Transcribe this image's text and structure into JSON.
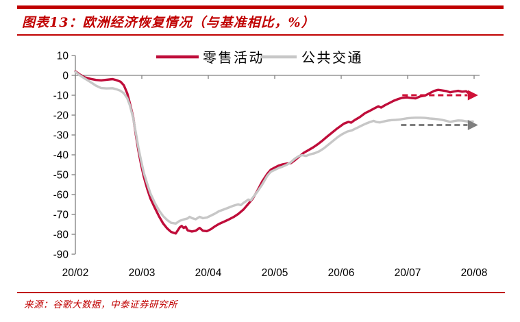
{
  "header": {
    "title": "图表13：欧洲经济恢复情况（与基准相比，%）"
  },
  "footer": {
    "source": "来源：谷歌大数据，中泰证券研究所"
  },
  "colors": {
    "accent_red": "#c00000",
    "series_red": "#bf0d3a",
    "series_gray": "#c7c7c7",
    "dash_red": "#cf1137",
    "dash_gray": "#7f7f7f",
    "axis_gray": "#808080",
    "label_black": "#000000"
  },
  "chart_data": {
    "type": "line",
    "title": "欧洲经济恢复情况（与基准相比，%）",
    "xlabel": "",
    "ylabel": "",
    "grid": false,
    "legend_position": "top-center",
    "x_tick_labels": [
      "20/02",
      "20/03",
      "20/04",
      "20/05",
      "20/06",
      "20/07",
      "20/08"
    ],
    "y_ticks": [
      10,
      0,
      -10,
      -20,
      -30,
      -40,
      -50,
      -60,
      -70,
      -80,
      -90
    ],
    "ylim": [
      -90,
      10
    ],
    "xlim": [
      0,
      6.1
    ],
    "series": [
      {
        "name": "零售活动",
        "color_key": "series_red",
        "points": [
          [
            0.0,
            2
          ],
          [
            0.06,
            0.6
          ],
          [
            0.14,
            -1
          ],
          [
            0.23,
            -1.8
          ],
          [
            0.31,
            -2.3
          ],
          [
            0.39,
            -2.5
          ],
          [
            0.47,
            -2.2
          ],
          [
            0.56,
            -1.9
          ],
          [
            0.62,
            -2.4
          ],
          [
            0.68,
            -3.2
          ],
          [
            0.73,
            -5
          ],
          [
            0.78,
            -9
          ],
          [
            0.82,
            -14
          ],
          [
            0.87,
            -21
          ],
          [
            0.91,
            -30
          ],
          [
            0.95,
            -38
          ],
          [
            0.99,
            -45
          ],
          [
            1.03,
            -51
          ],
          [
            1.08,
            -57
          ],
          [
            1.13,
            -62
          ],
          [
            1.2,
            -67
          ],
          [
            1.26,
            -71
          ],
          [
            1.32,
            -74.5
          ],
          [
            1.38,
            -77
          ],
          [
            1.44,
            -78.8
          ],
          [
            1.51,
            -79.6
          ],
          [
            1.57,
            -76.5
          ],
          [
            1.6,
            -75.8
          ],
          [
            1.63,
            -76.8
          ],
          [
            1.66,
            -76.2
          ],
          [
            1.69,
            -78
          ],
          [
            1.75,
            -78.6
          ],
          [
            1.81,
            -78.2
          ],
          [
            1.87,
            -76.8
          ],
          [
            1.92,
            -78.2
          ],
          [
            1.98,
            -78.4
          ],
          [
            2.04,
            -77.4
          ],
          [
            2.1,
            -76
          ],
          [
            2.16,
            -74.8
          ],
          [
            2.24,
            -73.6
          ],
          [
            2.31,
            -72.5
          ],
          [
            2.38,
            -71.3
          ],
          [
            2.45,
            -69.8
          ],
          [
            2.53,
            -67.5
          ],
          [
            2.6,
            -64.8
          ],
          [
            2.67,
            -62
          ],
          [
            2.74,
            -58
          ],
          [
            2.81,
            -53.5
          ],
          [
            2.89,
            -49.5
          ],
          [
            2.94,
            -47.5
          ],
          [
            3.0,
            -46.4
          ],
          [
            3.06,
            -45.4
          ],
          [
            3.12,
            -44.8
          ],
          [
            3.18,
            -44.4
          ],
          [
            3.24,
            -44.2
          ],
          [
            3.3,
            -42.8
          ],
          [
            3.37,
            -40.8
          ],
          [
            3.44,
            -38.9
          ],
          [
            3.51,
            -37.6
          ],
          [
            3.58,
            -36.2
          ],
          [
            3.65,
            -34.6
          ],
          [
            3.72,
            -32.8
          ],
          [
            3.79,
            -30.8
          ],
          [
            3.86,
            -28.9
          ],
          [
            3.93,
            -27
          ],
          [
            3.98,
            -25.8
          ],
          [
            4.04,
            -24.3
          ],
          [
            4.11,
            -23.4
          ],
          [
            4.15,
            -23.8
          ],
          [
            4.2,
            -22.6
          ],
          [
            4.28,
            -21
          ],
          [
            4.36,
            -19
          ],
          [
            4.44,
            -17.7
          ],
          [
            4.5,
            -16.6
          ],
          [
            4.56,
            -15.6
          ],
          [
            4.6,
            -16.2
          ],
          [
            4.66,
            -15
          ],
          [
            4.72,
            -14
          ],
          [
            4.79,
            -12.8
          ],
          [
            4.86,
            -11.9
          ],
          [
            4.92,
            -11.3
          ],
          [
            4.99,
            -11.1
          ],
          [
            5.06,
            -11.4
          ],
          [
            5.12,
            -11.6
          ],
          [
            5.19,
            -10.6
          ],
          [
            5.26,
            -10.2
          ],
          [
            5.33,
            -9
          ],
          [
            5.4,
            -7.8
          ],
          [
            5.46,
            -7.3
          ],
          [
            5.52,
            -7.6
          ],
          [
            5.58,
            -7.9
          ],
          [
            5.64,
            -8.5
          ],
          [
            5.7,
            -8.1
          ],
          [
            5.76,
            -7.8
          ],
          [
            5.82,
            -8.2
          ],
          [
            5.88,
            -8
          ],
          [
            5.93,
            -9.3
          ]
        ]
      },
      {
        "name": "公共交通",
        "color_key": "series_gray",
        "points": [
          [
            0.0,
            1.8
          ],
          [
            0.06,
            0.2
          ],
          [
            0.14,
            -1.6
          ],
          [
            0.23,
            -3.4
          ],
          [
            0.31,
            -5.2
          ],
          [
            0.39,
            -6.4
          ],
          [
            0.47,
            -6.6
          ],
          [
            0.56,
            -6.5
          ],
          [
            0.62,
            -7
          ],
          [
            0.68,
            -7.8
          ],
          [
            0.73,
            -9
          ],
          [
            0.78,
            -11.5
          ],
          [
            0.82,
            -15
          ],
          [
            0.87,
            -21.5
          ],
          [
            0.91,
            -29
          ],
          [
            0.95,
            -36.5
          ],
          [
            0.99,
            -43
          ],
          [
            1.03,
            -49
          ],
          [
            1.08,
            -54.5
          ],
          [
            1.13,
            -59.5
          ],
          [
            1.2,
            -64.5
          ],
          [
            1.26,
            -68
          ],
          [
            1.32,
            -70.8
          ],
          [
            1.38,
            -72.8
          ],
          [
            1.44,
            -74.2
          ],
          [
            1.51,
            -74.6
          ],
          [
            1.57,
            -73.2
          ],
          [
            1.63,
            -72.5
          ],
          [
            1.69,
            -72
          ],
          [
            1.72,
            -71.2
          ],
          [
            1.75,
            -71.8
          ],
          [
            1.81,
            -72.4
          ],
          [
            1.87,
            -71.2
          ],
          [
            1.92,
            -71.9
          ],
          [
            1.98,
            -71.5
          ],
          [
            2.04,
            -70.6
          ],
          [
            2.1,
            -69.6
          ],
          [
            2.16,
            -68.4
          ],
          [
            2.24,
            -67.4
          ],
          [
            2.31,
            -66.5
          ],
          [
            2.38,
            -65.6
          ],
          [
            2.45,
            -64.9
          ],
          [
            2.49,
            -65.3
          ],
          [
            2.53,
            -64.2
          ],
          [
            2.57,
            -63.3
          ],
          [
            2.6,
            -62.5
          ],
          [
            2.64,
            -62.9
          ],
          [
            2.67,
            -61.5
          ],
          [
            2.74,
            -58.5
          ],
          [
            2.81,
            -55
          ],
          [
            2.89,
            -50.5
          ],
          [
            2.94,
            -48.5
          ],
          [
            3.0,
            -47.6
          ],
          [
            3.06,
            -46.6
          ],
          [
            3.12,
            -45.9
          ],
          [
            3.18,
            -45
          ],
          [
            3.24,
            -43.8
          ],
          [
            3.3,
            -42
          ],
          [
            3.37,
            -40.5
          ],
          [
            3.42,
            -40.2
          ],
          [
            3.47,
            -40.6
          ],
          [
            3.53,
            -39.8
          ],
          [
            3.6,
            -39.2
          ],
          [
            3.67,
            -38.2
          ],
          [
            3.74,
            -36.7
          ],
          [
            3.81,
            -34.8
          ],
          [
            3.88,
            -32.9
          ],
          [
            3.95,
            -31
          ],
          [
            4.02,
            -29.5
          ],
          [
            4.09,
            -28.3
          ],
          [
            4.16,
            -27.7
          ],
          [
            4.23,
            -26.6
          ],
          [
            4.3,
            -25.4
          ],
          [
            4.37,
            -24.3
          ],
          [
            4.44,
            -23.4
          ],
          [
            4.49,
            -22.9
          ],
          [
            4.53,
            -23.5
          ],
          [
            4.58,
            -23.7
          ],
          [
            4.64,
            -23.2
          ],
          [
            4.7,
            -22.8
          ],
          [
            4.76,
            -22.5
          ],
          [
            4.82,
            -22.4
          ],
          [
            4.88,
            -22.2
          ],
          [
            4.94,
            -21.9
          ],
          [
            5.0,
            -21.6
          ],
          [
            5.06,
            -21.4
          ],
          [
            5.12,
            -21.3
          ],
          [
            5.19,
            -21.3
          ],
          [
            5.26,
            -21.4
          ],
          [
            5.33,
            -21.7
          ],
          [
            5.4,
            -21.9
          ],
          [
            5.46,
            -22.1
          ],
          [
            5.52,
            -22.4
          ],
          [
            5.58,
            -22.9
          ],
          [
            5.64,
            -23.4
          ],
          [
            5.7,
            -23
          ],
          [
            5.76,
            -22.7
          ],
          [
            5.82,
            -22.8
          ],
          [
            5.88,
            -23.1
          ],
          [
            5.94,
            -23.3
          ],
          [
            5.98,
            -23.2
          ]
        ]
      }
    ],
    "annotations": [
      {
        "type": "dashed-arrow",
        "name": "retail-level-arrow",
        "color_key": "dash_red",
        "y": -10,
        "x_start": 4.92,
        "x_end": 5.9,
        "tip": 6.06
      },
      {
        "type": "dashed-arrow",
        "name": "transit-level-arrow",
        "color_key": "dash_gray",
        "y": -25,
        "x_start": 4.9,
        "x_end": 5.9,
        "tip": 6.06
      }
    ]
  }
}
